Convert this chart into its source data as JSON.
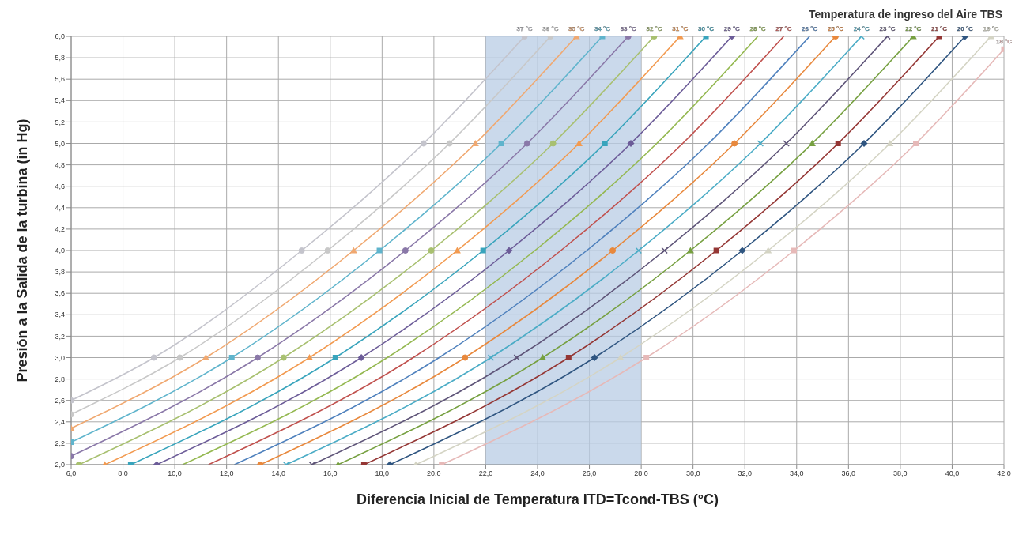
{
  "chart_data": {
    "type": "line",
    "legend_title": "Temperatura de ingreso del Aire TBS",
    "xlabel": "Diferencia Inicial de Temperatura ITD=Tcond-TBS (°C)",
    "ylabel": "Presión a la Salida de la turbina (in Hg)",
    "xlim": [
      6,
      42
    ],
    "ylim": [
      2,
      6
    ],
    "xticks": [
      {
        "value": 6,
        "label": "6,0"
      },
      {
        "value": 8,
        "label": "8,0"
      },
      {
        "value": 10,
        "label": "10,0"
      },
      {
        "value": 12,
        "label": "12,0"
      },
      {
        "value": 14,
        "label": "14,0"
      },
      {
        "value": 16,
        "label": "16,0"
      },
      {
        "value": 18,
        "label": "18,0"
      },
      {
        "value": 20,
        "label": "20,0"
      },
      {
        "value": 22,
        "label": "22,0"
      },
      {
        "value": 24,
        "label": "24,0"
      },
      {
        "value": 26,
        "label": "26,0"
      },
      {
        "value": 28,
        "label": "28,0"
      },
      {
        "value": 30,
        "label": "30,0"
      },
      {
        "value": 32,
        "label": "32,0"
      },
      {
        "value": 34,
        "label": "34,0"
      },
      {
        "value": 36,
        "label": "36,0"
      },
      {
        "value": 38,
        "label": "38,0"
      },
      {
        "value": 40,
        "label": "40,0"
      },
      {
        "value": 42,
        "label": "42,0"
      }
    ],
    "yticks": [
      {
        "value": 2,
        "label": "2,0"
      },
      {
        "value": 2.2,
        "label": "2,2"
      },
      {
        "value": 2.4,
        "label": "2,4"
      },
      {
        "value": 2.6,
        "label": "2,6"
      },
      {
        "value": 2.8,
        "label": "2,8"
      },
      {
        "value": 3,
        "label": "3,0"
      },
      {
        "value": 3.2,
        "label": "3,2"
      },
      {
        "value": 3.4,
        "label": "3,4"
      },
      {
        "value": 3.6,
        "label": "3,6"
      },
      {
        "value": 3.8,
        "label": "3,8"
      },
      {
        "value": 4,
        "label": "4,0"
      },
      {
        "value": 4.2,
        "label": "4,2"
      },
      {
        "value": 4.4,
        "label": "4,4"
      },
      {
        "value": 4.6,
        "label": "4,6"
      },
      {
        "value": 4.8,
        "label": "4,8"
      },
      {
        "value": 5,
        "label": "5,0"
      },
      {
        "value": 5.2,
        "label": "5,2"
      },
      {
        "value": 5.4,
        "label": "5,4"
      },
      {
        "value": 5.6,
        "label": "5,6"
      },
      {
        "value": 5.8,
        "label": "5,8"
      },
      {
        "value": 6,
        "label": "6,0"
      }
    ],
    "grid": true,
    "bands": [
      {
        "axis": "x",
        "from": 22,
        "to": 28,
        "color": "#b8cce4"
      }
    ],
    "series": [
      {
        "name": "37 °C",
        "color": "#c4c4cc",
        "marker": "circle",
        "x": [
          6,
          9.2,
          14.9,
          19.6,
          23.5
        ],
        "values": [
          2.6,
          3,
          4,
          5,
          6
        ]
      },
      {
        "name": "36 °C",
        "color": "#c8c8c8",
        "marker": "circle",
        "x": [
          6,
          10.2,
          15.9,
          20.6,
          24.5
        ],
        "values": [
          2.47,
          3,
          4,
          5,
          6
        ]
      },
      {
        "name": "35 °C",
        "color": "#f0a870",
        "marker": "triangle",
        "x": [
          6,
          11.2,
          16.9,
          21.6,
          25.5
        ],
        "values": [
          2.34,
          3,
          4,
          5,
          6
        ]
      },
      {
        "name": "34 °C",
        "color": "#5fb4cc",
        "marker": "square",
        "x": [
          6,
          12.2,
          17.9,
          22.6,
          26.5
        ],
        "values": [
          2.21,
          3,
          4,
          5,
          6
        ]
      },
      {
        "name": "33 °C",
        "color": "#8a78a8",
        "marker": "circle",
        "x": [
          6,
          13.2,
          18.9,
          23.6,
          27.5
        ],
        "values": [
          2.08,
          3,
          4,
          5,
          6
        ]
      },
      {
        "name": "32 °C",
        "color": "#a8c070",
        "marker": "circle",
        "x": [
          6.3,
          14.2,
          19.9,
          24.6,
          28.5
        ],
        "values": [
          2,
          3,
          4,
          5,
          6
        ]
      },
      {
        "name": "31 °C",
        "color": "#f29a50",
        "marker": "triangle",
        "x": [
          7.3,
          15.2,
          20.9,
          25.6,
          29.5
        ],
        "values": [
          2,
          3,
          4,
          5,
          6
        ]
      },
      {
        "name": "30 °C",
        "color": "#38a4bc",
        "marker": "square",
        "x": [
          8.3,
          16.2,
          21.9,
          26.6,
          30.5
        ],
        "values": [
          2,
          3,
          4,
          5,
          6
        ]
      },
      {
        "name": "29 °C",
        "color": "#6c5c98",
        "marker": "diamond",
        "x": [
          9.3,
          17.2,
          22.9,
          27.6,
          31.5
        ],
        "values": [
          2,
          3,
          4,
          5,
          6
        ]
      },
      {
        "name": "28 °C",
        "color": "#94b850",
        "marker": "none",
        "x": [
          10.3,
          18.2,
          23.9,
          28.6,
          32.5
        ],
        "values": [
          2,
          3,
          4,
          5,
          6
        ]
      },
      {
        "name": "27 °C",
        "color": "#c0504d",
        "marker": "none",
        "x": [
          11.3,
          19.2,
          24.9,
          29.6,
          33.5
        ],
        "values": [
          2,
          3,
          4,
          5,
          6
        ]
      },
      {
        "name": "26 °C",
        "color": "#4f81bd",
        "marker": "none",
        "x": [
          12.3,
          20.2,
          25.9,
          30.6,
          34.5
        ],
        "values": [
          2,
          3,
          4,
          5,
          6
        ]
      },
      {
        "name": "25 °C",
        "color": "#e8883c",
        "marker": "circle",
        "x": [
          13.3,
          21.2,
          26.9,
          31.6,
          35.5
        ],
        "values": [
          2,
          3,
          4,
          5,
          6
        ]
      },
      {
        "name": "24 °C",
        "color": "#4bacc6",
        "marker": "cross",
        "x": [
          14.3,
          22.2,
          27.9,
          32.6,
          36.5
        ],
        "values": [
          2,
          3,
          4,
          5,
          6
        ]
      },
      {
        "name": "23 °C",
        "color": "#5e5478",
        "marker": "cross",
        "x": [
          15.3,
          23.2,
          28.9,
          33.6,
          37.5
        ],
        "values": [
          2,
          3,
          4,
          5,
          6
        ]
      },
      {
        "name": "22 °C",
        "color": "#76a040",
        "marker": "triangle",
        "x": [
          16.3,
          24.2,
          29.9,
          34.6,
          38.5
        ],
        "values": [
          2,
          3,
          4,
          5,
          6
        ]
      },
      {
        "name": "21 °C",
        "color": "#943634",
        "marker": "square",
        "x": [
          17.3,
          25.2,
          30.9,
          35.6,
          39.5
        ],
        "values": [
          2,
          3,
          4,
          5,
          6
        ]
      },
      {
        "name": "20 °C",
        "color": "#2f5580",
        "marker": "diamond",
        "x": [
          18.3,
          26.2,
          31.9,
          36.6,
          40.5
        ],
        "values": [
          2,
          3,
          4,
          5,
          6
        ]
      },
      {
        "name": "19 °C",
        "color": "#d4d4c4",
        "marker": "triangle",
        "x": [
          19.3,
          27.2,
          32.9,
          37.6,
          41.5
        ],
        "values": [
          2,
          3,
          4,
          5,
          6
        ]
      },
      {
        "name": "18 °C",
        "color": "#e6b9b8",
        "marker": "square",
        "x": [
          20.3,
          28.2,
          33.9,
          38.6,
          42
        ],
        "values": [
          2,
          3,
          4,
          5,
          5.88
        ]
      }
    ]
  }
}
